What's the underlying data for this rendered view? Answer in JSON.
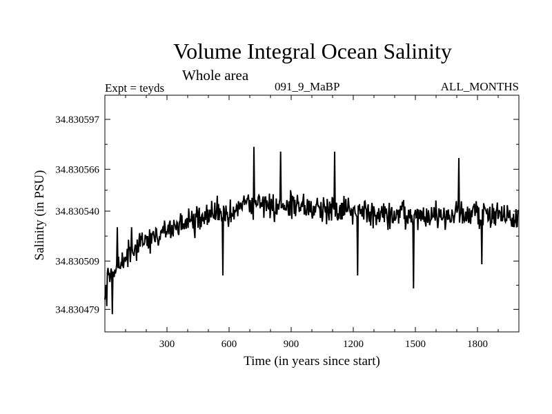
{
  "chart_data": {
    "type": "line",
    "title": "Volume Integral Ocean Salinity",
    "subtitle": "Whole area",
    "annotation_left": "Expt = teyds",
    "annotation_center": "091_9_MaBP",
    "annotation_right": "ALL_MONTHS",
    "xlabel": "Time (in years since start)",
    "ylabel": "Salinity (in PSU)",
    "xlim": [
      0,
      2000
    ],
    "ylim": [
      34.830465,
      34.830612
    ],
    "xticks": [
      300,
      600,
      900,
      1200,
      1500,
      1800
    ],
    "xtick_labels": [
      "300",
      "600",
      "900",
      "1200",
      "1500",
      "1800"
    ],
    "yticks": [
      34.830479,
      34.830509,
      34.83054,
      34.830566,
      34.830597
    ],
    "ytick_labels": [
      "34.830479",
      "34.830509",
      "34.830540",
      "34.830566",
      "34.830597"
    ],
    "series": [
      {
        "name": "Salinity",
        "color": "#000000",
        "trend": {
          "x": [
            0,
            50,
            100,
            150,
            200,
            250,
            300,
            400,
            500,
            600,
            700,
            800,
            900,
            1000,
            1100,
            1200,
            1300,
            1400,
            1500,
            1600,
            1700,
            1800,
            1900,
            2000
          ],
          "y": [
            34.830494,
            34.830503,
            34.83051,
            34.830516,
            34.830522,
            34.830525,
            34.830528,
            34.830532,
            34.830537,
            34.830541,
            34.830544,
            34.830544,
            34.830543,
            34.830542,
            34.830542,
            34.830541,
            34.830538,
            34.830537,
            34.830536,
            34.830537,
            34.830538,
            34.830538,
            34.830537,
            34.830533
          ]
        },
        "noise_amplitude": 8.5e-06,
        "step_years": 3,
        "extremes": {
          "x": [
            10,
            25,
            35,
            60,
            130,
            720,
            850,
            1110,
            570,
            1490,
            1220,
            1820,
            1710
          ],
          "y": [
            34.830481,
            34.830496,
            34.830476,
            34.83053,
            34.83053,
            34.83058,
            34.830577,
            34.830577,
            34.8305,
            34.830492,
            34.8305,
            34.830507,
            34.830573
          ]
        }
      }
    ]
  }
}
